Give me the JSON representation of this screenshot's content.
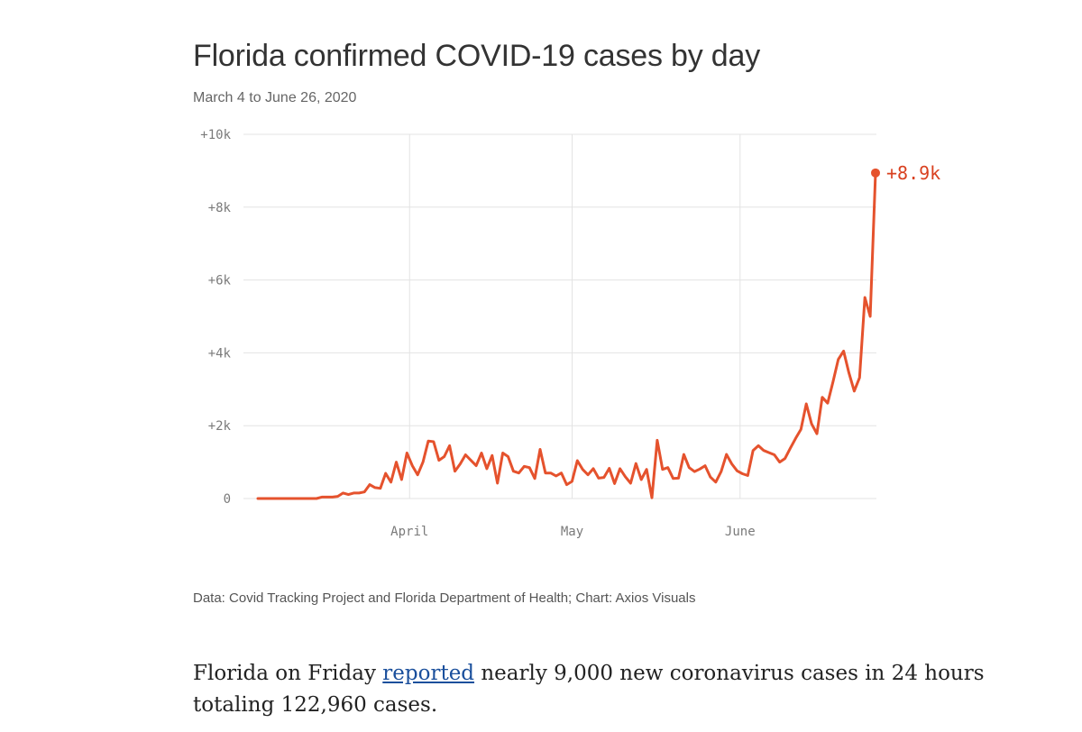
{
  "chart_data": {
    "type": "line",
    "title": "Florida confirmed COVID-19 cases by day",
    "subtitle": "March 4 to June 26, 2020",
    "xlabel": "",
    "ylabel": "",
    "x_start": "2020-03-04",
    "x_end": "2020-06-26",
    "x_ticks": [
      {
        "date": "2020-04-01",
        "label": "April"
      },
      {
        "date": "2020-05-01",
        "label": "May"
      },
      {
        "date": "2020-06-01",
        "label": "June"
      }
    ],
    "y_ticks": [
      {
        "value": 0,
        "label": "0"
      },
      {
        "value": 2000,
        "label": "+2k"
      },
      {
        "value": 4000,
        "label": "+4k"
      },
      {
        "value": 6000,
        "label": "+6k"
      },
      {
        "value": 8000,
        "label": "+8k"
      },
      {
        "value": 10000,
        "label": "+10k"
      }
    ],
    "ylim": [
      0,
      10000
    ],
    "grid": true,
    "color": "#e5522d",
    "last_value_label": "+8.9k",
    "series": [
      {
        "values": [
          0,
          0,
          0,
          0,
          0,
          0,
          0,
          0,
          0,
          0,
          0,
          0,
          40,
          40,
          40,
          60,
          150,
          110,
          150,
          150,
          180,
          380,
          300,
          280,
          690,
          450,
          1000,
          520,
          1250,
          900,
          650,
          1000,
          1580,
          1560,
          1050,
          1150,
          1450,
          750,
          950,
          1200,
          1050,
          900,
          1250,
          820,
          1180,
          420,
          1250,
          1150,
          750,
          700,
          880,
          850,
          550,
          1350,
          700,
          700,
          620,
          700,
          380,
          470,
          1040,
          800,
          650,
          820,
          560,
          580,
          830,
          410,
          820,
          600,
          420,
          960,
          520,
          800,
          20,
          1600,
          800,
          850,
          550,
          560,
          1210,
          850,
          740,
          810,
          900,
          590,
          450,
          740,
          1210,
          950,
          760,
          680,
          630,
          1320,
          1450,
          1320,
          1260,
          1200,
          1000,
          1100,
          1380,
          1650,
          1900,
          2600,
          2050,
          1780,
          2780,
          2620,
          3200,
          3820,
          4050,
          3450,
          2950,
          3320,
          5520,
          5000,
          8940
        ]
      }
    ]
  },
  "source": "Data: Covid Tracking Project and Florida Department of Health; Chart: Axios Visuals",
  "article": {
    "before_link": "Florida on Friday ",
    "link_text": "reported",
    "after_link": " nearly 9,000 new coronavirus cases in 24 hours totaling 122,960 cases."
  }
}
